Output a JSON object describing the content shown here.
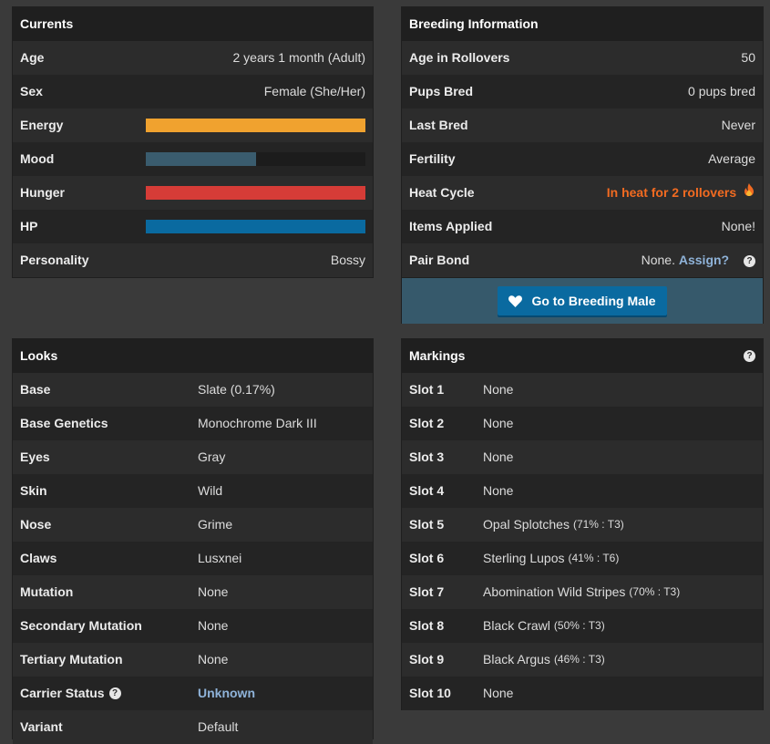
{
  "currents": {
    "title": "Currents",
    "age_label": "Age",
    "age_value": "2 years 1 month (Adult)",
    "sex_label": "Sex",
    "sex_value": "Female (She/Her)",
    "bars": [
      {
        "label": "Energy",
        "fraction": 1.0,
        "color": "#f0a22f"
      },
      {
        "label": "Mood",
        "fraction": 0.5,
        "color": "#3a5c6e"
      },
      {
        "label": "Hunger",
        "fraction": 1.0,
        "color": "#d63c37"
      },
      {
        "label": "HP",
        "fraction": 1.0,
        "color": "#0a6aa0"
      }
    ],
    "personality_label": "Personality",
    "personality_value": "Bossy"
  },
  "breeding": {
    "title": "Breeding Information",
    "age_rollovers_label": "Age in Rollovers",
    "age_rollovers_value": "50",
    "pups_label": "Pups Bred",
    "pups_value": "0 pups bred",
    "last_label": "Last Bred",
    "last_value": "Never",
    "fertility_label": "Fertility",
    "fertility_value": "Average",
    "heat_label": "Heat Cycle",
    "heat_value": "In heat for 2 rollovers",
    "items_label": "Items Applied",
    "items_value": "None!",
    "bond_label": "Pair Bond",
    "bond_value": "None.",
    "bond_link": "Assign?",
    "button_label": "Go to Breeding Male"
  },
  "looks": {
    "title": "Looks",
    "rows": [
      {
        "label": "Base",
        "value": "Slate (0.17%)"
      },
      {
        "label": "Base Genetics",
        "value": "Monochrome Dark III"
      },
      {
        "label": "Eyes",
        "value": "Gray"
      },
      {
        "label": "Skin",
        "value": "Wild"
      },
      {
        "label": "Nose",
        "value": "Grime"
      },
      {
        "label": "Claws",
        "value": "Lusxnei"
      },
      {
        "label": "Mutation",
        "value": "None"
      },
      {
        "label": "Secondary Mutation",
        "value": "None"
      },
      {
        "label": "Tertiary Mutation",
        "value": "None"
      },
      {
        "label": "Carrier Status",
        "value": "Unknown"
      },
      {
        "label": "Variant",
        "value": "Default"
      }
    ]
  },
  "markings": {
    "title": "Markings",
    "rows": [
      {
        "label": "Slot 1",
        "value": "None",
        "pct": ""
      },
      {
        "label": "Slot 2",
        "value": "None",
        "pct": ""
      },
      {
        "label": "Slot 3",
        "value": "None",
        "pct": ""
      },
      {
        "label": "Slot 4",
        "value": "None",
        "pct": ""
      },
      {
        "label": "Slot 5",
        "value": "Opal Splotches",
        "pct": "(71% : T3)"
      },
      {
        "label": "Slot 6",
        "value": "Sterling Lupos",
        "pct": "(41% : T6)"
      },
      {
        "label": "Slot 7",
        "value": "Abomination Wild Stripes",
        "pct": "(70% : T3)"
      },
      {
        "label": "Slot 8",
        "value": "Black Crawl",
        "pct": "(50% : T3)"
      },
      {
        "label": "Slot 9",
        "value": "Black Argus",
        "pct": "(46% : T3)"
      },
      {
        "label": "Slot 10",
        "value": "None",
        "pct": ""
      }
    ]
  },
  "icons": {
    "help": "question-circle-icon",
    "heart": "heart-icon",
    "fire": "fire-icon"
  }
}
